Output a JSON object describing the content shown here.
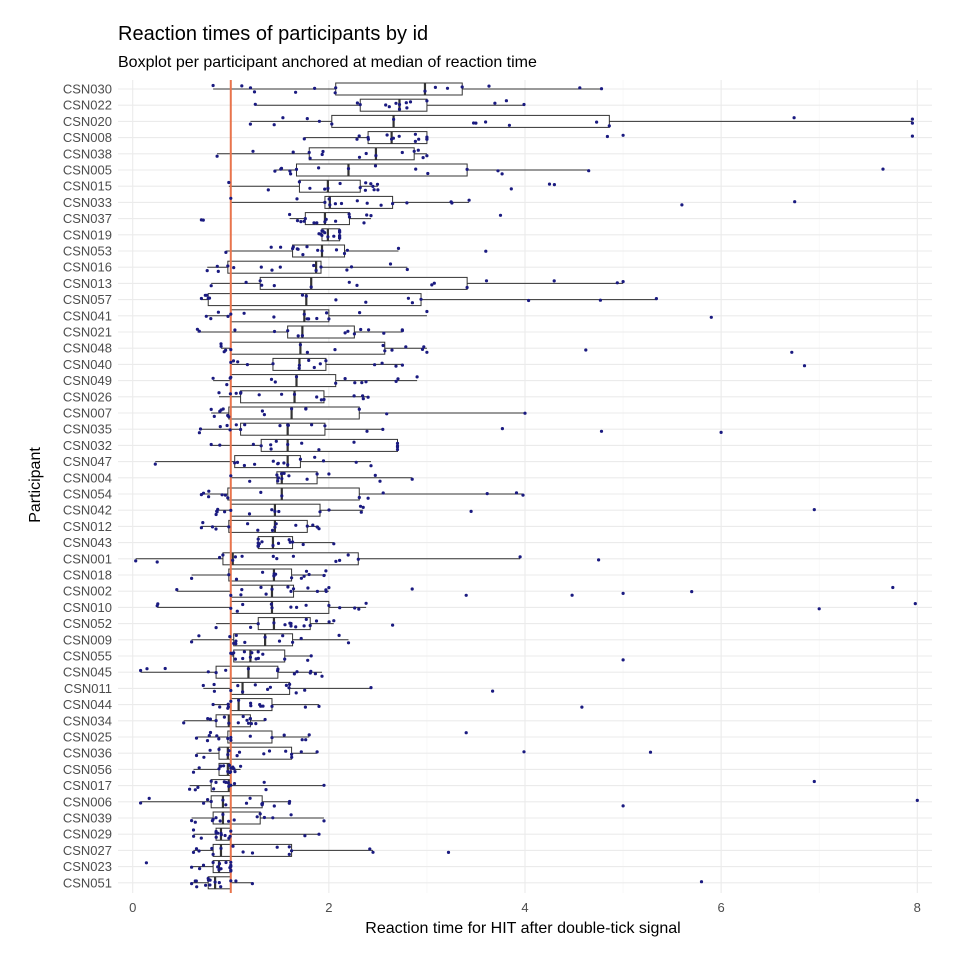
{
  "chart_data": {
    "type": "boxplot",
    "title": "Reaction times of participants by id",
    "subtitle": "Boxplot per participant anchored at median of reaction time",
    "xlabel": "Reaction time for HIT after double-tick signal",
    "ylabel": "Participant",
    "xlim": [
      -0.15,
      8.15
    ],
    "x_ticks": [
      0,
      2,
      4,
      6,
      8
    ],
    "reference_line_x": 1,
    "reference_line_color": "#e8744c",
    "point_color": "#1a1a80",
    "grid": true,
    "participants": [
      {
        "id": "CSN030",
        "q1": 2.07,
        "median": 2.98,
        "q3": 3.36,
        "lo": 0.82,
        "hi": 4.78,
        "outliers": []
      },
      {
        "id": "CSN022",
        "q1": 2.32,
        "median": 2.72,
        "q3": 3.0,
        "lo": 1.25,
        "hi": 3.99,
        "outliers": []
      },
      {
        "id": "CSN020",
        "q1": 2.03,
        "median": 2.66,
        "q3": 4.86,
        "lo": 1.2,
        "hi": 7.95,
        "outliers": [
          7.95
        ]
      },
      {
        "id": "CSN008",
        "q1": 2.4,
        "median": 2.64,
        "q3": 3.0,
        "lo": 1.75,
        "hi": 3.0,
        "outliers": [
          4.84,
          5.0,
          7.95
        ]
      },
      {
        "id": "CSN038",
        "q1": 1.8,
        "median": 2.48,
        "q3": 2.87,
        "lo": 0.86,
        "hi": 3.0,
        "outliers": []
      },
      {
        "id": "CSN005",
        "q1": 1.67,
        "median": 2.2,
        "q3": 3.41,
        "lo": 1.45,
        "hi": 4.65,
        "outliers": [
          7.65
        ]
      },
      {
        "id": "CSN015",
        "q1": 1.7,
        "median": 1.99,
        "q3": 2.32,
        "lo": 0.98,
        "hi": 2.5,
        "outliers": [
          3.86,
          4.25,
          4.3
        ]
      },
      {
        "id": "CSN033",
        "q1": 1.96,
        "median": 2.01,
        "q3": 2.65,
        "lo": 1.0,
        "hi": 3.43,
        "outliers": [
          5.6,
          6.75
        ]
      },
      {
        "id": "CSN037",
        "q1": 1.76,
        "median": 1.96,
        "q3": 2.21,
        "lo": 1.6,
        "hi": 2.43,
        "outliers": [
          0.7,
          0.72,
          3.75
        ]
      },
      {
        "id": "CSN019",
        "q1": 1.93,
        "median": 1.99,
        "q3": 2.11,
        "lo": 1.9,
        "hi": 2.11,
        "outliers": []
      },
      {
        "id": "CSN053",
        "q1": 1.63,
        "median": 1.93,
        "q3": 2.16,
        "lo": 0.95,
        "hi": 2.71,
        "outliers": [
          3.6
        ]
      },
      {
        "id": "CSN016",
        "q1": 0.97,
        "median": 1.87,
        "q3": 1.92,
        "lo": 0.76,
        "hi": 2.8,
        "outliers": []
      },
      {
        "id": "CSN013",
        "q1": 1.3,
        "median": 1.82,
        "q3": 3.41,
        "lo": 0.8,
        "hi": 5.0,
        "outliers": []
      },
      {
        "id": "CSN057",
        "q1": 0.77,
        "median": 1.77,
        "q3": 2.94,
        "lo": 0.7,
        "hi": 5.34,
        "outliers": []
      },
      {
        "id": "CSN041",
        "q1": 1.0,
        "median": 1.75,
        "q3": 2.0,
        "lo": 0.75,
        "hi": 3.0,
        "outliers": [
          5.9
        ]
      },
      {
        "id": "CSN021",
        "q1": 1.58,
        "median": 1.73,
        "q3": 2.26,
        "lo": 0.66,
        "hi": 2.75,
        "outliers": []
      },
      {
        "id": "CSN048",
        "q1": 1.0,
        "median": 1.71,
        "q3": 2.57,
        "lo": 0.9,
        "hi": 3.0,
        "outliers": [
          4.62,
          6.72
        ]
      },
      {
        "id": "CSN040",
        "q1": 1.43,
        "median": 1.7,
        "q3": 1.97,
        "lo": 1.0,
        "hi": 2.75,
        "outliers": [
          6.85
        ]
      },
      {
        "id": "CSN049",
        "q1": 1.0,
        "median": 1.67,
        "q3": 2.07,
        "lo": 0.82,
        "hi": 2.9,
        "outliers": []
      },
      {
        "id": "CSN026",
        "q1": 1.1,
        "median": 1.65,
        "q3": 1.95,
        "lo": 0.88,
        "hi": 2.4,
        "outliers": []
      },
      {
        "id": "CSN007",
        "q1": 0.98,
        "median": 1.62,
        "q3": 2.31,
        "lo": 0.8,
        "hi": 4.0,
        "outliers": []
      },
      {
        "id": "CSN035",
        "q1": 1.1,
        "median": 1.58,
        "q3": 1.96,
        "lo": 0.68,
        "hi": 2.55,
        "outliers": [
          3.77,
          4.78,
          6.0
        ]
      },
      {
        "id": "CSN032",
        "q1": 1.31,
        "median": 1.58,
        "q3": 2.7,
        "lo": 0.8,
        "hi": 2.7,
        "outliers": []
      },
      {
        "id": "CSN047",
        "q1": 1.04,
        "median": 1.58,
        "q3": 1.71,
        "lo": 0.23,
        "hi": 2.43,
        "outliers": []
      },
      {
        "id": "CSN004",
        "q1": 1.47,
        "median": 1.52,
        "q3": 1.88,
        "lo": 1.0,
        "hi": 2.85,
        "outliers": []
      },
      {
        "id": "CSN054",
        "q1": 0.97,
        "median": 1.52,
        "q3": 2.31,
        "lo": 0.7,
        "hi": 3.98,
        "outliers": []
      },
      {
        "id": "CSN042",
        "q1": 1.0,
        "median": 1.45,
        "q3": 1.91,
        "lo": 0.85,
        "hi": 2.35,
        "outliers": [
          3.45,
          6.95
        ]
      },
      {
        "id": "CSN012",
        "q1": 0.98,
        "median": 1.45,
        "q3": 1.78,
        "lo": 0.7,
        "hi": 1.9,
        "outliers": []
      },
      {
        "id": "CSN043",
        "q1": 1.28,
        "median": 1.43,
        "q3": 1.63,
        "lo": 1.28,
        "hi": 2.05,
        "outliers": []
      },
      {
        "id": "CSN001",
        "q1": 0.92,
        "median": 1.02,
        "q3": 2.3,
        "lo": 0.03,
        "hi": 3.95,
        "outliers": [
          4.75
        ]
      },
      {
        "id": "CSN018",
        "q1": 0.98,
        "median": 1.44,
        "q3": 1.62,
        "lo": 0.6,
        "hi": 1.97,
        "outliers": []
      },
      {
        "id": "CSN002",
        "q1": 1.0,
        "median": 1.42,
        "q3": 1.64,
        "lo": 0.45,
        "hi": 2.0,
        "outliers": [
          2.85,
          3.4,
          4.48,
          5.0,
          5.7,
          7.75
        ]
      },
      {
        "id": "CSN010",
        "q1": 1.0,
        "median": 1.42,
        "q3": 2.0,
        "lo": 0.25,
        "hi": 2.38,
        "outliers": [
          7.0,
          7.98
        ]
      },
      {
        "id": "CSN052",
        "q1": 1.28,
        "median": 1.44,
        "q3": 1.81,
        "lo": 0.85,
        "hi": 2.05,
        "outliers": [
          2.65
        ]
      },
      {
        "id": "CSN009",
        "q1": 1.03,
        "median": 1.35,
        "q3": 1.63,
        "lo": 0.6,
        "hi": 2.2,
        "outliers": []
      },
      {
        "id": "CSN055",
        "q1": 1.03,
        "median": 1.2,
        "q3": 1.55,
        "lo": 1.0,
        "hi": 1.82,
        "outliers": [
          5.0
        ]
      },
      {
        "id": "CSN045",
        "q1": 0.85,
        "median": 1.18,
        "q3": 1.48,
        "lo": 0.08,
        "hi": 1.93,
        "outliers": []
      },
      {
        "id": "CSN011",
        "q1": 1.0,
        "median": 1.12,
        "q3": 1.6,
        "lo": 0.72,
        "hi": 2.43,
        "outliers": [
          3.67
        ]
      },
      {
        "id": "CSN044",
        "q1": 1.0,
        "median": 1.08,
        "q3": 1.42,
        "lo": 0.82,
        "hi": 1.9,
        "outliers": [
          4.58
        ]
      },
      {
        "id": "CSN034",
        "q1": 0.85,
        "median": 0.98,
        "q3": 1.2,
        "lo": 0.52,
        "hi": 1.35,
        "outliers": []
      },
      {
        "id": "CSN025",
        "q1": 0.97,
        "median": 1.0,
        "q3": 1.42,
        "lo": 0.65,
        "hi": 1.8,
        "outliers": [
          3.4
        ]
      },
      {
        "id": "CSN036",
        "q1": 0.88,
        "median": 0.97,
        "q3": 1.62,
        "lo": 0.65,
        "hi": 1.88,
        "outliers": [
          3.99,
          5.28
        ]
      },
      {
        "id": "CSN056",
        "q1": 0.88,
        "median": 0.97,
        "q3": 1.0,
        "lo": 0.62,
        "hi": 1.1,
        "outliers": []
      },
      {
        "id": "CSN017",
        "q1": 0.8,
        "median": 0.98,
        "q3": 1.0,
        "lo": 0.58,
        "hi": 1.95,
        "outliers": [
          6.95
        ]
      },
      {
        "id": "CSN006",
        "q1": 0.8,
        "median": 0.92,
        "q3": 1.32,
        "lo": 0.08,
        "hi": 1.6,
        "outliers": [
          5.0,
          8.0
        ]
      },
      {
        "id": "CSN039",
        "q1": 0.82,
        "median": 0.92,
        "q3": 1.3,
        "lo": 0.6,
        "hi": 1.95,
        "outliers": []
      },
      {
        "id": "CSN029",
        "q1": 0.85,
        "median": 0.9,
        "q3": 1.0,
        "lo": 0.62,
        "hi": 1.9,
        "outliers": []
      },
      {
        "id": "CSN027",
        "q1": 0.82,
        "median": 0.9,
        "q3": 1.62,
        "lo": 0.62,
        "hi": 2.45,
        "outliers": [
          3.22
        ]
      },
      {
        "id": "CSN023",
        "q1": 0.82,
        "median": 0.88,
        "q3": 1.0,
        "lo": 0.6,
        "hi": 1.0,
        "outliers": [
          0.14
        ]
      },
      {
        "id": "CSN051",
        "q1": 0.77,
        "median": 0.84,
        "q3": 1.0,
        "lo": 0.6,
        "hi": 1.22,
        "outliers": [
          5.8
        ]
      }
    ]
  }
}
